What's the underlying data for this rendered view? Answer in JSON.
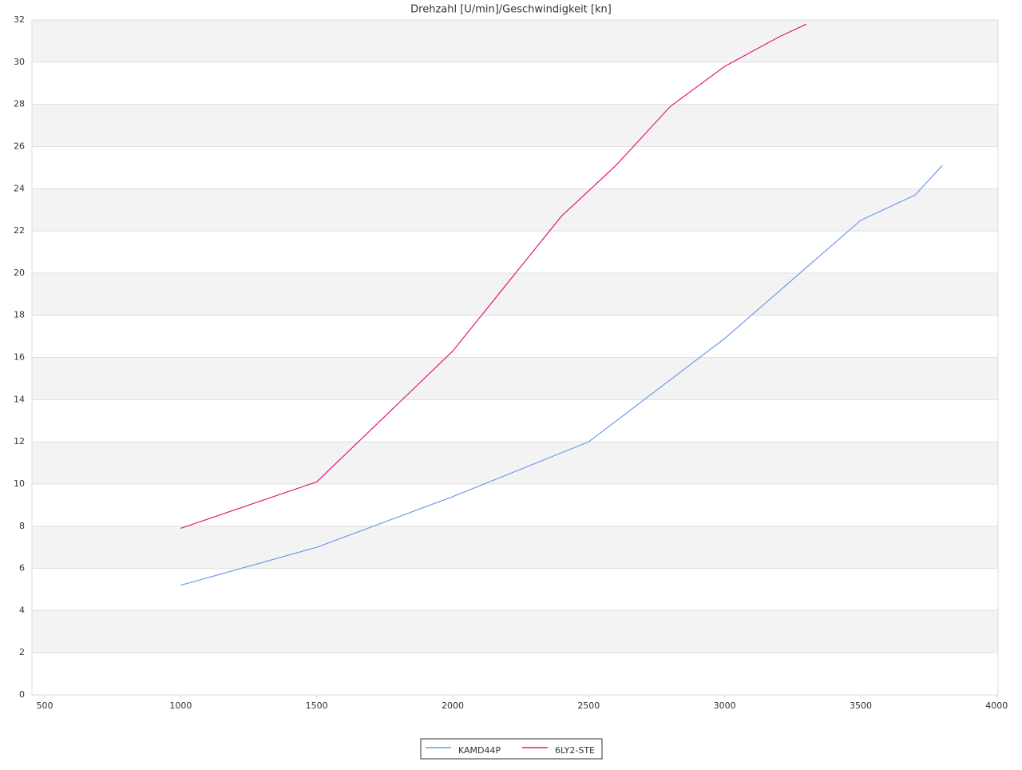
{
  "chart_data": {
    "type": "line",
    "title": "Drehzahl [U/min]/Geschwindigkeit [kn]",
    "series": [
      {
        "name": "KAMD44P",
        "color": "#6f9be8",
        "x": [
          1000,
          1500,
          2000,
          2500,
          3000,
          3500,
          3700,
          3800
        ],
        "values": [
          5.2,
          7.0,
          9.4,
          12.0,
          16.9,
          22.5,
          23.7,
          25.1
        ]
      },
      {
        "name": "6LY2-STE",
        "color": "#e0197d",
        "x": [
          1000,
          1500,
          2000,
          2400,
          2600,
          2800,
          3000,
          3200,
          3300
        ],
        "values": [
          7.9,
          10.1,
          16.3,
          22.7,
          25.1,
          27.9,
          29.8,
          31.2,
          31.8
        ]
      }
    ],
    "xlim": [
      453,
      4005
    ],
    "xticks": [
      500,
      1000,
      1500,
      2000,
      2500,
      3000,
      3500,
      4000
    ],
    "ylim": [
      0,
      32
    ],
    "yticks": [
      0,
      2,
      4,
      6,
      8,
      10,
      12,
      14,
      16,
      18,
      20,
      22,
      24,
      26,
      28,
      30,
      32
    ],
    "grid": true,
    "legend": "bottom"
  }
}
